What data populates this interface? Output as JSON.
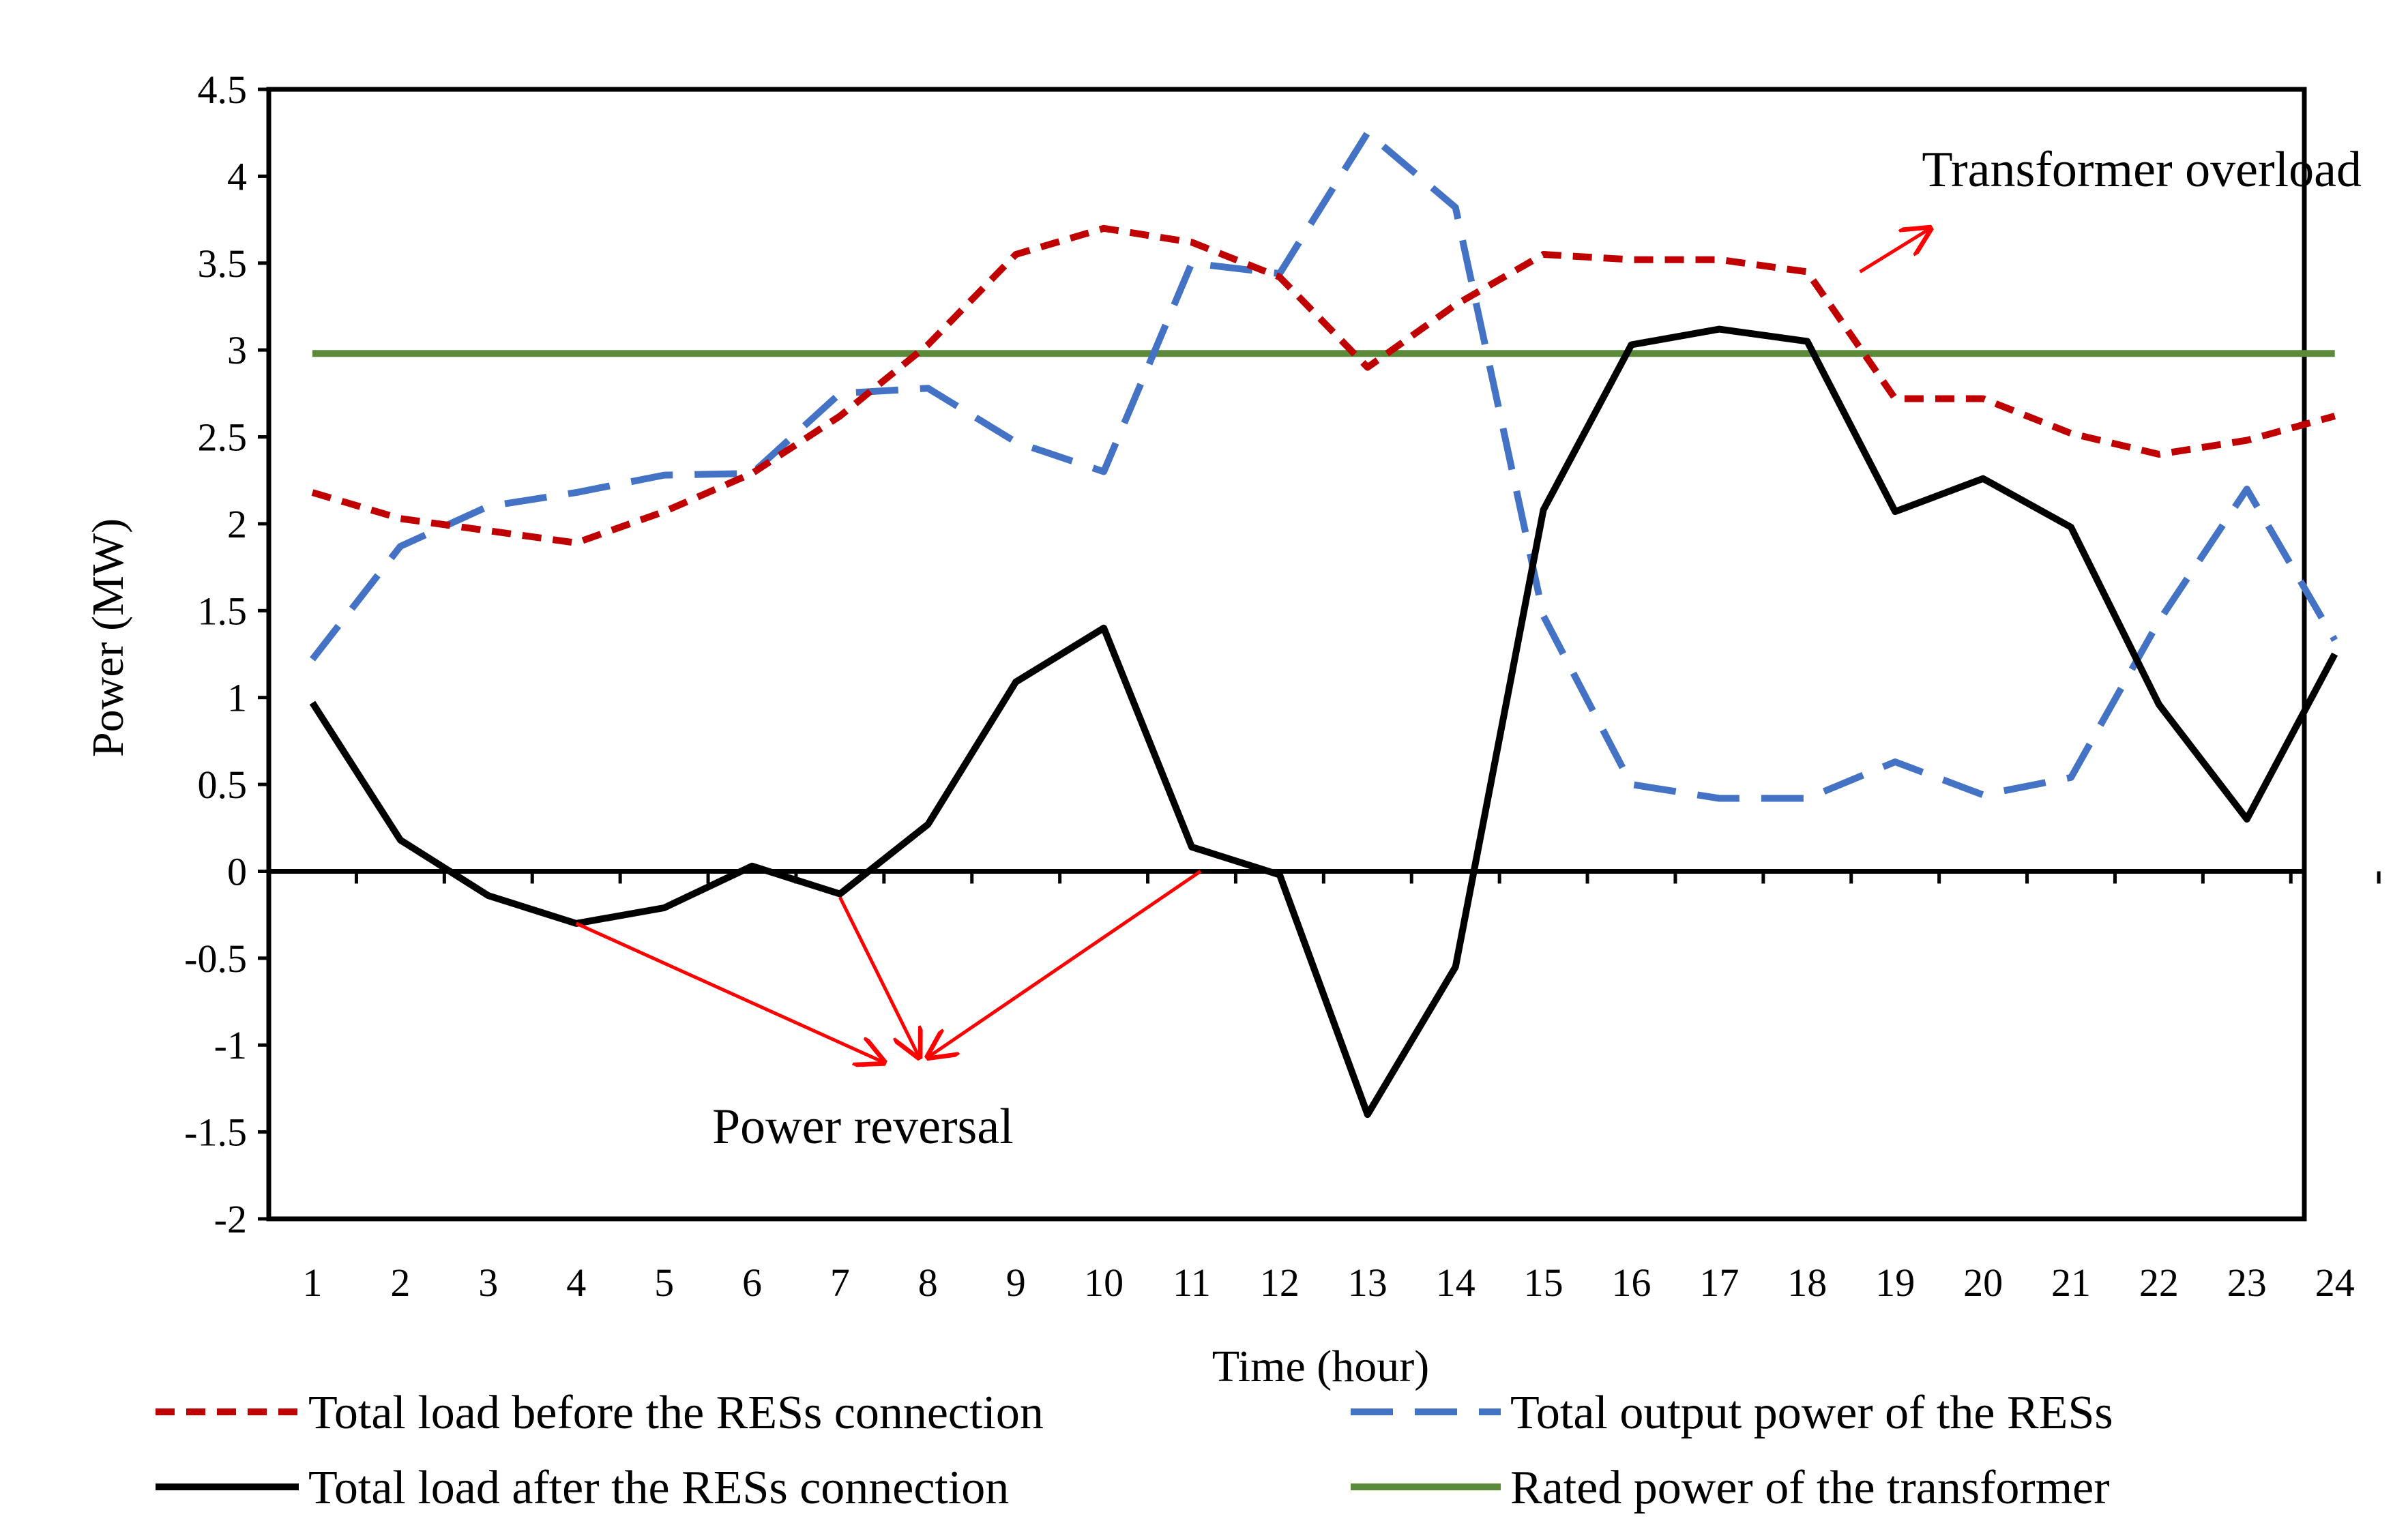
{
  "chart_data": {
    "type": "line",
    "title": "",
    "xlabel": "Time (hour)",
    "ylabel": "Power (MW)",
    "x": [
      1,
      2,
      3,
      4,
      5,
      6,
      7,
      8,
      9,
      10,
      11,
      12,
      13,
      14,
      15,
      16,
      17,
      18,
      19,
      20,
      21,
      22,
      23,
      24
    ],
    "xticks": [
      "1",
      "2",
      "3",
      "4",
      "5",
      "6",
      "7",
      "8",
      "9",
      "10",
      "11",
      "12",
      "13",
      "14",
      "15",
      "16",
      "17",
      "18",
      "19",
      "20",
      "21",
      "22",
      "23",
      "24"
    ],
    "ylim": [
      -2,
      4.5
    ],
    "yticks": [
      4.5,
      4,
      3.5,
      3,
      2.5,
      2,
      1.5,
      1,
      0.5,
      0,
      -0.5,
      -1,
      -1.5,
      -2
    ],
    "ytick_labels": [
      "4.5",
      "4",
      "3.5",
      "3",
      "2.5",
      "2",
      "1.5",
      "1",
      "0.5",
      "0",
      "-0.5",
      "-1",
      "-1.5",
      "-2"
    ],
    "grid": false,
    "legend_position": "bottom",
    "series": [
      {
        "name": "Total load before the RESs connection",
        "color": "#c00000",
        "style": "short-dash",
        "values": [
          2.18,
          2.03,
          1.96,
          1.89,
          2.07,
          2.29,
          2.62,
          3.03,
          3.55,
          3.7,
          3.62,
          3.42,
          2.9,
          3.26,
          3.55,
          3.52,
          3.52,
          3.45,
          2.72,
          2.72,
          2.52,
          2.4,
          2.48,
          2.62
        ]
      },
      {
        "name": "Total output power of the RESs",
        "color": "#4472c4",
        "style": "long-dash",
        "values": [
          1.22,
          1.87,
          2.1,
          2.18,
          2.28,
          2.29,
          2.75,
          2.78,
          2.47,
          2.3,
          3.5,
          3.44,
          4.25,
          3.82,
          1.47,
          0.5,
          0.42,
          0.42,
          0.63,
          0.44,
          0.54,
          1.44,
          2.2,
          1.33
        ]
      },
      {
        "name": "Total load after the RESs connection",
        "color": "#000000",
        "style": "solid",
        "values": [
          0.97,
          0.18,
          -0.14,
          -0.3,
          -0.21,
          0.03,
          -0.13,
          0.27,
          1.09,
          1.4,
          0.14,
          -0.02,
          -1.4,
          -0.55,
          2.08,
          3.03,
          3.12,
          3.05,
          2.07,
          2.26,
          1.98,
          0.96,
          0.3,
          1.25
        ]
      },
      {
        "name": "Rated power of the transformer",
        "color": "#5b8a3a",
        "style": "solid",
        "values": [
          2.98,
          2.98,
          2.98,
          2.98,
          2.98,
          2.98,
          2.98,
          2.98,
          2.98,
          2.98,
          2.98,
          2.98,
          2.98,
          2.98,
          2.98,
          2.98,
          2.98,
          2.98,
          2.98,
          2.98,
          2.98,
          2.98,
          2.98,
          2.98
        ]
      }
    ],
    "annotations": [
      {
        "text": "Transformer overload",
        "color": "#000000",
        "arrow_color": "#ff0000",
        "arrow_from": [
          18.6,
          3.45
        ],
        "arrow_to": [
          19.4,
          3.7
        ]
      },
      {
        "text": "Power reversal",
        "color": "#000000",
        "arrow_color": "#ff0000",
        "arrows": [
          {
            "from": [
              4,
              -0.3
            ],
            "to": [
              7.5,
              -1.1
            ]
          },
          {
            "from": [
              7,
              -0.15
            ],
            "to": [
              7.9,
              -1.07
            ]
          },
          {
            "from": [
              11.1,
              0
            ],
            "to": [
              8.0,
              -1.07
            ]
          }
        ]
      }
    ]
  }
}
